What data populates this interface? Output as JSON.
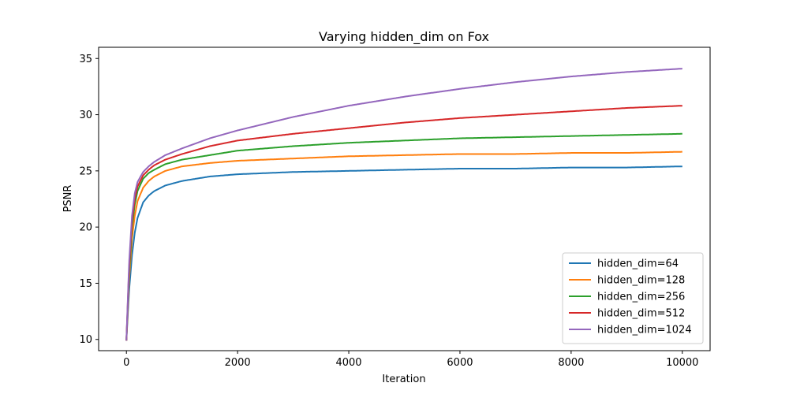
{
  "chart_data": {
    "type": "line",
    "title": "Varying hidden_dim on Fox",
    "xlabel": "Iteration",
    "ylabel": "PSNR",
    "xlim": [
      -500,
      10500
    ],
    "ylim": [
      9,
      36
    ],
    "x_ticks": [
      0,
      2000,
      4000,
      6000,
      8000,
      10000
    ],
    "y_ticks": [
      10,
      15,
      20,
      25,
      30,
      35
    ],
    "grid": false,
    "legend_position": "lower-right",
    "x": [
      0,
      50,
      100,
      150,
      200,
      300,
      400,
      500,
      700,
      1000,
      1500,
      2000,
      3000,
      4000,
      5000,
      6000,
      7000,
      8000,
      9000,
      10000
    ],
    "series": [
      {
        "name": "hidden_dim=64",
        "color": "#1f77b4",
        "values": [
          9.9,
          14.5,
          17.5,
          19.5,
          20.8,
          22.2,
          22.8,
          23.2,
          23.7,
          24.1,
          24.5,
          24.7,
          24.9,
          25.0,
          25.1,
          25.2,
          25.2,
          25.3,
          25.3,
          25.4
        ]
      },
      {
        "name": "hidden_dim=128",
        "color": "#ff7f0e",
        "values": [
          9.9,
          15.5,
          19.0,
          21.0,
          22.3,
          23.5,
          24.1,
          24.5,
          25.0,
          25.4,
          25.7,
          25.9,
          26.1,
          26.3,
          26.4,
          26.5,
          26.5,
          26.6,
          26.6,
          26.7
        ]
      },
      {
        "name": "hidden_dim=256",
        "color": "#2ca02c",
        "values": [
          9.9,
          16.0,
          20.0,
          22.0,
          23.2,
          24.3,
          24.8,
          25.1,
          25.6,
          26.0,
          26.4,
          26.8,
          27.2,
          27.5,
          27.7,
          27.9,
          28.0,
          28.1,
          28.2,
          28.3
        ]
      },
      {
        "name": "hidden_dim=512",
        "color": "#d62728",
        "values": [
          9.9,
          16.5,
          20.5,
          22.5,
          23.6,
          24.6,
          25.1,
          25.5,
          26.0,
          26.5,
          27.2,
          27.7,
          28.3,
          28.8,
          29.3,
          29.7,
          30.0,
          30.3,
          30.6,
          30.8
        ]
      },
      {
        "name": "hidden_dim=1024",
        "color": "#9467bd",
        "values": [
          9.9,
          17.0,
          21.0,
          23.0,
          24.0,
          24.9,
          25.4,
          25.8,
          26.4,
          27.0,
          27.9,
          28.6,
          29.8,
          30.8,
          31.6,
          32.3,
          32.9,
          33.4,
          33.8,
          34.1
        ]
      }
    ]
  }
}
